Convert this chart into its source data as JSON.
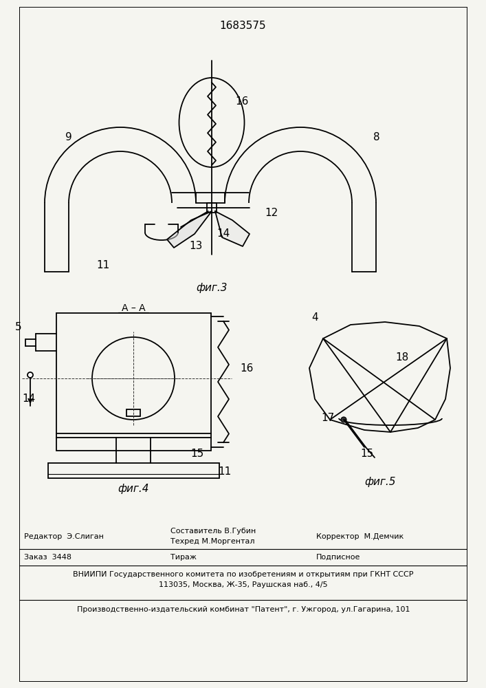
{
  "title": "1683575",
  "bg": "#f5f5f0",
  "lc": "#000000",
  "fig3_label": "фиг.3",
  "fig4_label": "фиг.4",
  "fig5_label": "фиг.5",
  "fig4_section": "А – А",
  "editor": "Редактор  Э.Слиган",
  "compiler1": "Составитель В.Губин",
  "compiler2": "Техред М.Моргентал",
  "corrector": "Корректор  М.Демчик",
  "order": "Заказ  3448",
  "tirazh": "Тираж",
  "podpisnoe": "Подписное",
  "vniiipi": "ВНИИПИ Государственного комитета по изобретениям и открытиям при ГКНТ СССР",
  "address": "113035, Москва, Ж-35, Раушская наб., 4/5",
  "factory": "Производственно-издательский комбинат \"Патент\", г. Ужгород, ул.Гагарина, 101"
}
